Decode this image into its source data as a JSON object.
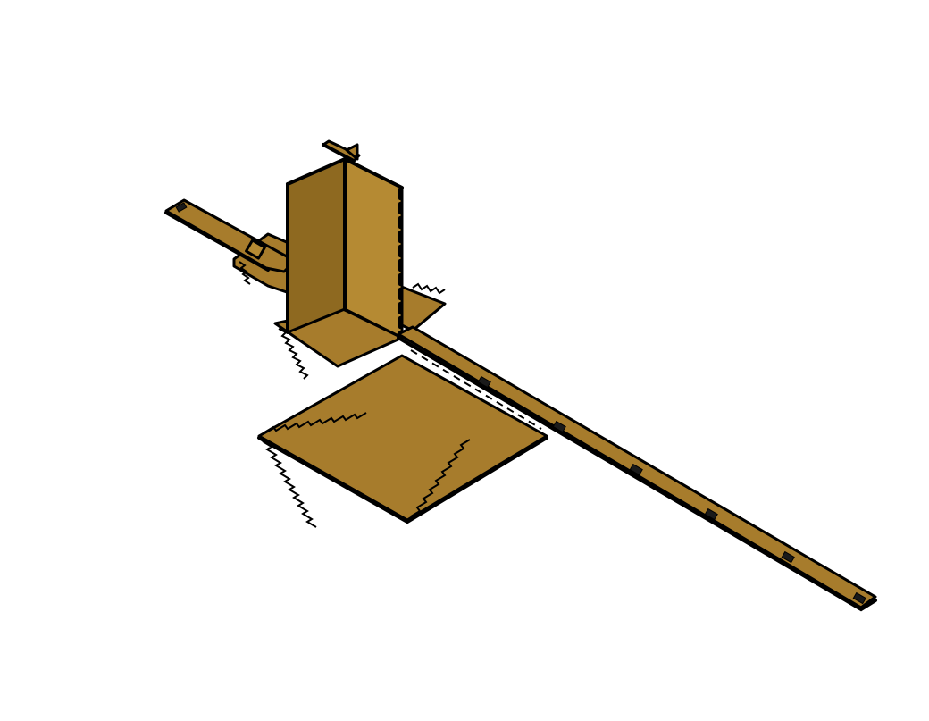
{
  "scene": {
    "colors": {
      "background": "#ffffff",
      "wood": "#A77C2C",
      "wood_light": "#B58A33",
      "wood_dark": "#8E6920",
      "outline": "#000000"
    },
    "parts": [
      "long-rail",
      "base-plate",
      "upright-box",
      "rear-tab-plate",
      "side-tab-plate",
      "top-cross-bar"
    ]
  }
}
